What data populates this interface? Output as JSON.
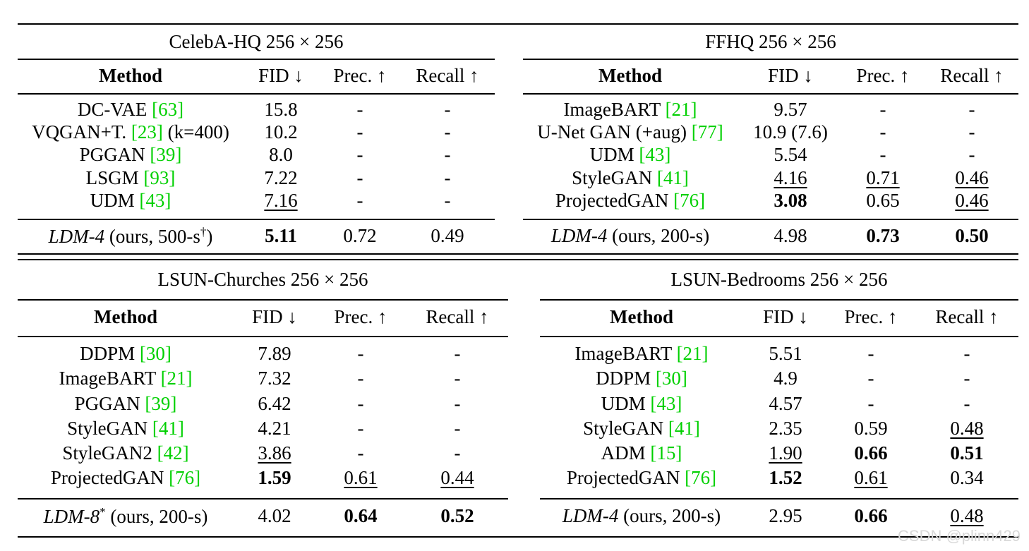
{
  "watermark": "CSDN @plinn429",
  "tables": [
    {
      "title": "CelebA-HQ 256 × 256",
      "headers": [
        "Method",
        "FID ↓",
        "Prec. ↑",
        "Recall ↑"
      ],
      "rows": [
        {
          "method": "DC-VAE ",
          "ref": "[63]",
          "suffix": "",
          "fid": "15.8",
          "prec": "-",
          "recall": "-"
        },
        {
          "method": "VQGAN+T. ",
          "ref": "[23]",
          "suffix": " (k=400)",
          "fid": "10.2",
          "prec": "-",
          "recall": "-"
        },
        {
          "method": "PGGAN ",
          "ref": "[39]",
          "suffix": "",
          "fid": "8.0",
          "prec": "-",
          "recall": "-"
        },
        {
          "method": "LSGM ",
          "ref": "[93]",
          "suffix": "",
          "fid": "7.22",
          "prec": "-",
          "recall": "-"
        },
        {
          "method": "UDM ",
          "ref": "[43]",
          "suffix": "",
          "fid": "7.16",
          "prec": "-",
          "recall": "-",
          "fid_style": "u"
        }
      ],
      "ours": {
        "name": "LDM-4",
        "detail": " (ours, 500-s",
        "sup": "†",
        "close": ")",
        "fid": "5.11",
        "prec": "0.72",
        "recall": "0.49",
        "fid_style": "b"
      }
    },
    {
      "title": "FFHQ 256 × 256",
      "headers": [
        "Method",
        "FID ↓",
        "Prec. ↑",
        "Recall ↑"
      ],
      "rows": [
        {
          "method": "ImageBART ",
          "ref": "[21]",
          "suffix": "",
          "fid": "9.57",
          "prec": "-",
          "recall": "-"
        },
        {
          "method": "U-Net GAN (+aug) ",
          "ref": "[77]",
          "suffix": "",
          "fid": "10.9 (7.6)",
          "prec": "-",
          "recall": "-"
        },
        {
          "method": "UDM ",
          "ref": "[43]",
          "suffix": "",
          "fid": "5.54",
          "prec": "-",
          "recall": "-"
        },
        {
          "method": "StyleGAN ",
          "ref": "[41]",
          "suffix": "",
          "fid": "4.16",
          "prec": "0.71",
          "recall": "0.46",
          "fid_style": "u",
          "prec_style": "u",
          "recall_style": "u"
        },
        {
          "method": "ProjectedGAN ",
          "ref": "[76]",
          "suffix": "",
          "fid": "3.08",
          "prec": "0.65",
          "recall": "0.46",
          "fid_style": "b",
          "recall_style": "u"
        }
      ],
      "ours": {
        "name": "LDM-4",
        "detail": " (ours, 200-s)",
        "sup": "",
        "close": "",
        "fid": "4.98",
        "prec": "0.73",
        "recall": "0.50",
        "prec_style": "b",
        "recall_style": "b"
      }
    },
    {
      "title": "LSUN-Churches 256 × 256",
      "headers": [
        "Method",
        "FID ↓",
        "Prec. ↑",
        "Recall ↑"
      ],
      "rows": [
        {
          "method": "DDPM ",
          "ref": "[30]",
          "suffix": "",
          "fid": "7.89",
          "prec": "-",
          "recall": "-"
        },
        {
          "method": "ImageBART ",
          "ref": "[21]",
          "suffix": "",
          "fid": "7.32",
          "prec": "-",
          "recall": "-"
        },
        {
          "method": "PGGAN ",
          "ref": "[39]",
          "suffix": "",
          "fid": "6.42",
          "prec": "-",
          "recall": "-"
        },
        {
          "method": "StyleGAN ",
          "ref": "[41]",
          "suffix": "",
          "fid": "4.21",
          "prec": "-",
          "recall": "-"
        },
        {
          "method": "StyleGAN2 ",
          "ref": "[42]",
          "suffix": "",
          "fid": "3.86",
          "prec": "-",
          "recall": "-",
          "fid_style": "u"
        },
        {
          "method": "ProjectedGAN ",
          "ref": "[76]",
          "suffix": "",
          "fid": "1.59",
          "prec": "0.61",
          "recall": "0.44",
          "fid_style": "b",
          "prec_style": "u",
          "recall_style": "u"
        }
      ],
      "ours": {
        "name": "LDM-8",
        "detail": " (ours, 200-s)",
        "sup": "*",
        "sup_before": true,
        "close": "",
        "fid": "4.02",
        "prec": "0.64",
        "recall": "0.52",
        "prec_style": "b",
        "recall_style": "b"
      }
    },
    {
      "title": "LSUN-Bedrooms 256 × 256",
      "headers": [
        "Method",
        "FID ↓",
        "Prec. ↑",
        "Recall ↑"
      ],
      "rows": [
        {
          "method": "ImageBART ",
          "ref": "[21]",
          "suffix": "",
          "fid": "5.51",
          "prec": "-",
          "recall": "-"
        },
        {
          "method": "DDPM ",
          "ref": "[30]",
          "suffix": "",
          "fid": "4.9",
          "prec": "-",
          "recall": "-"
        },
        {
          "method": "UDM ",
          "ref": "[43]",
          "suffix": "",
          "fid": "4.57",
          "prec": "-",
          "recall": "-"
        },
        {
          "method": "StyleGAN ",
          "ref": "[41]",
          "suffix": "",
          "fid": "2.35",
          "prec": "0.59",
          "recall": "0.48",
          "recall_style": "u"
        },
        {
          "method": "ADM ",
          "ref": "[15]",
          "suffix": "",
          "fid": "1.90",
          "prec": "0.66",
          "recall": "0.51",
          "fid_style": "u",
          "prec_style": "b",
          "recall_style": "b"
        },
        {
          "method": "ProjectedGAN ",
          "ref": "[76]",
          "suffix": "",
          "fid": "1.52",
          "prec": "0.61",
          "recall": "0.34",
          "fid_style": "b",
          "prec_style": "u"
        }
      ],
      "ours": {
        "name": "LDM-4",
        "detail": " (ours, 200-s)",
        "sup": "",
        "close": "",
        "fid": "2.95",
        "prec": "0.66",
        "recall": "0.48",
        "prec_style": "b",
        "recall_style": "u"
      }
    }
  ]
}
